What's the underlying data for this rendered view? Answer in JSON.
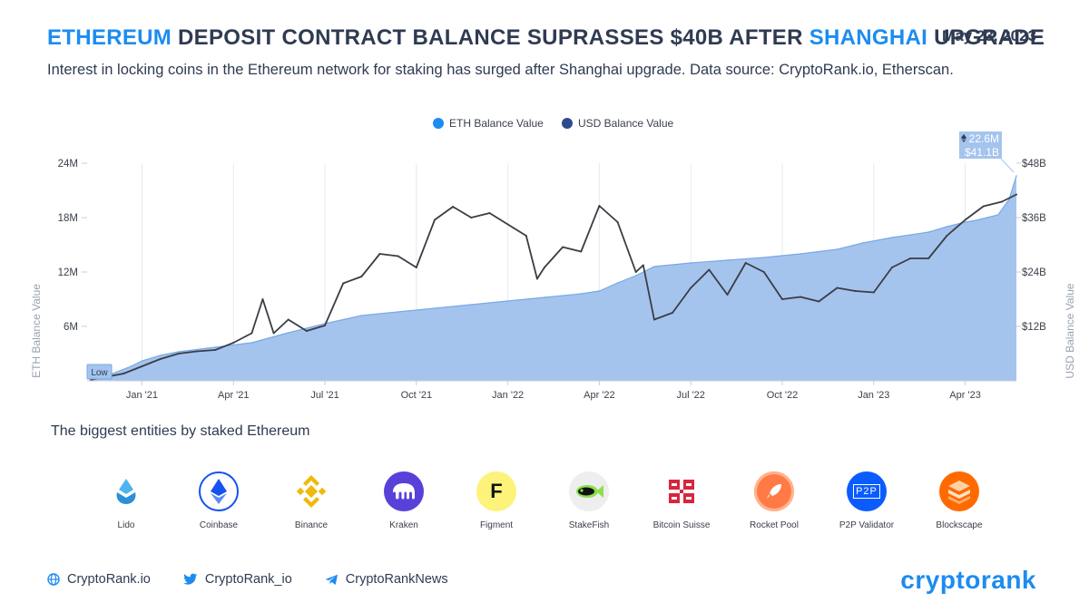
{
  "header": {
    "title_hl1": "ETHEREUM",
    "title_mid": " DEPOSIT CONTRACT BALANCE SUPRASSES $40B AFTER ",
    "title_hl2": "SHANGHAI",
    "title_end": " UPGRADE",
    "date": "May 23, 2023",
    "subtitle": "Interest in locking coins in the Ethereum network for staking has surged after Shanghai upgrade. Data source: CryptoRank.io, Etherscan."
  },
  "colors": {
    "accent": "#1c8cf0",
    "area": "#a4c4ee",
    "area_line": "#7aa8e6",
    "usd_line": "#3a3d44",
    "text": "#2f3b52"
  },
  "chart_data": {
    "type": "area",
    "legend": [
      {
        "name": "ETH Balance Value",
        "color": "#1c8cf0"
      },
      {
        "name": "USD Balance Value",
        "color": "#2e4a8c"
      }
    ],
    "ylabel_left": "ETH Balance Value",
    "ylabel_right": "USD Balance Value",
    "left_ticks": [
      "24M",
      "18M",
      "12M",
      "6M"
    ],
    "left_tick_values": [
      24,
      18,
      12,
      6
    ],
    "ylim_left": [
      0,
      24
    ],
    "right_ticks": [
      "$48B",
      "$36B",
      "$24B",
      "$12B"
    ],
    "right_tick_values": [
      48,
      36,
      24,
      12
    ],
    "ylim_right": [
      0,
      48
    ],
    "x_ticks": [
      "Jan '21",
      "Apr '21",
      "Jul '21",
      "Oct '21",
      "Jan '22",
      "Apr '22",
      "Jul '22",
      "Oct '22",
      "Jan '23",
      "Apr '23"
    ],
    "x_tick_values": [
      2021.0,
      2021.25,
      2021.5,
      2021.75,
      2022.0,
      2022.25,
      2022.5,
      2022.75,
      2023.0,
      2023.25
    ],
    "xlim": [
      2020.85,
      2023.39
    ],
    "low_label": "Low",
    "tooltip": {
      "eth": "22.6M",
      "usd": "$41.1B"
    },
    "series": [
      {
        "name": "ETH Balance Value",
        "unit": "M ETH",
        "x": [
          2020.86,
          2020.92,
          2020.97,
          2021.0,
          2021.05,
          2021.1,
          2021.2,
          2021.3,
          2021.4,
          2021.5,
          2021.6,
          2021.7,
          2021.8,
          2021.9,
          2022.0,
          2022.1,
          2022.2,
          2022.25,
          2022.3,
          2022.35,
          2022.4,
          2022.5,
          2022.6,
          2022.7,
          2022.8,
          2022.9,
          2022.97,
          2023.05,
          2023.15,
          2023.2,
          2023.25,
          2023.28,
          2023.31,
          2023.34,
          2023.37,
          2023.39
        ],
        "values": [
          0.1,
          0.8,
          1.6,
          2.2,
          2.8,
          3.2,
          3.7,
          4.2,
          5.3,
          6.3,
          7.2,
          7.6,
          8.0,
          8.4,
          8.8,
          9.2,
          9.6,
          9.9,
          10.8,
          11.6,
          12.6,
          13.0,
          13.3,
          13.6,
          14.0,
          14.5,
          15.2,
          15.8,
          16.4,
          17.0,
          17.5,
          17.7,
          18.0,
          18.3,
          20.0,
          22.6
        ]
      },
      {
        "name": "USD Balance Value",
        "unit": "$B",
        "x": [
          2020.86,
          2020.95,
          2021.0,
          2021.05,
          2021.1,
          2021.15,
          2021.2,
          2021.25,
          2021.3,
          2021.33,
          2021.36,
          2021.4,
          2021.45,
          2021.5,
          2021.55,
          2021.6,
          2021.65,
          2021.7,
          2021.75,
          2021.8,
          2021.85,
          2021.9,
          2021.95,
          2022.0,
          2022.05,
          2022.08,
          2022.1,
          2022.15,
          2022.2,
          2022.25,
          2022.3,
          2022.35,
          2022.37,
          2022.4,
          2022.45,
          2022.5,
          2022.55,
          2022.6,
          2022.65,
          2022.7,
          2022.75,
          2022.8,
          2022.85,
          2022.9,
          2022.95,
          2023.0,
          2023.05,
          2023.1,
          2023.15,
          2023.2,
          2023.25,
          2023.3,
          2023.35,
          2023.39
        ],
        "values": [
          0.2,
          1.6,
          3.2,
          4.8,
          6.0,
          6.5,
          6.8,
          8.4,
          10.5,
          18.0,
          10.5,
          13.5,
          11.0,
          12.2,
          21.5,
          23.0,
          28.0,
          27.5,
          25.0,
          35.5,
          38.4,
          36.0,
          37.0,
          34.5,
          32.0,
          22.5,
          25.0,
          29.5,
          28.5,
          38.6,
          35.0,
          24.0,
          25.5,
          13.5,
          15.0,
          20.5,
          24.5,
          19.0,
          26.0,
          24.0,
          18.0,
          18.5,
          17.5,
          20.5,
          19.8,
          19.5,
          25.0,
          27.0,
          27.0,
          32.0,
          35.5,
          38.5,
          39.5,
          41.1
        ]
      }
    ]
  },
  "entities": {
    "title": "The biggest entities by staked Ethereum",
    "items": [
      {
        "label": "Lido",
        "icon": "lido-icon"
      },
      {
        "label": "Coinbase",
        "icon": "coinbase-icon"
      },
      {
        "label": "Binance",
        "icon": "binance-icon"
      },
      {
        "label": "Kraken",
        "icon": "kraken-icon"
      },
      {
        "label": "Figment",
        "icon": "figment-icon",
        "glyph": "F"
      },
      {
        "label": "StakeFish",
        "icon": "stakefish-icon"
      },
      {
        "label": "Bitcoin Suisse",
        "icon": "bitcoin-suisse-icon"
      },
      {
        "label": "Rocket Pool",
        "icon": "rocket-pool-icon"
      },
      {
        "label": "P2P Validator",
        "icon": "p2p-validator-icon",
        "glyph": "P2P"
      },
      {
        "label": "Blockscape",
        "icon": "blockscape-icon"
      }
    ]
  },
  "footer": {
    "website": "CryptoRank.io",
    "twitter": "CryptoRank_io",
    "telegram": "CryptoRankNews",
    "brand": "cryptorank"
  }
}
